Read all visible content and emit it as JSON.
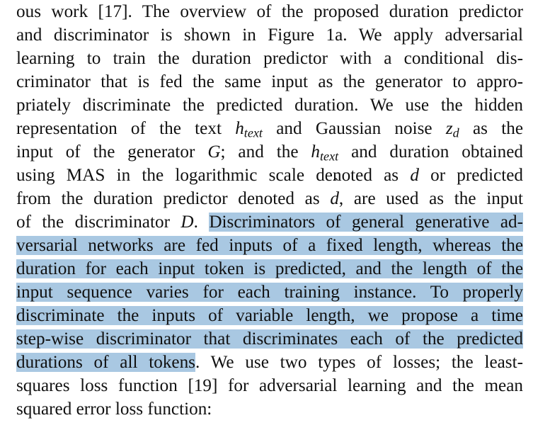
{
  "lines": [
    {
      "segments": [
        {
          "t": "ous work [17]. The overview of the proposed duration predictor"
        }
      ]
    },
    {
      "segments": [
        {
          "t": "and discriminator is shown in Figure 1a. We apply adversarial"
        }
      ]
    },
    {
      "segments": [
        {
          "t": "learning to train the duration predictor with a conditional dis-"
        }
      ]
    },
    {
      "segments": [
        {
          "t": "criminator that is fed the same input as the generator to appro-"
        }
      ]
    },
    {
      "segments": [
        {
          "t": "priately discriminate the predicted duration. We use the hidden"
        }
      ]
    },
    {
      "segments": [
        {
          "t": "representation of the text "
        },
        {
          "t": "h",
          "math": true
        },
        {
          "t": "text",
          "sub": true
        },
        {
          "t": " and Gaussian noise "
        },
        {
          "t": "z",
          "math": true
        },
        {
          "t": "d",
          "sub": true
        },
        {
          "t": " as the"
        }
      ]
    },
    {
      "segments": [
        {
          "t": "input of the generator "
        },
        {
          "t": "G",
          "math": true
        },
        {
          "t": "; and the "
        },
        {
          "t": "h",
          "math": true
        },
        {
          "t": "text",
          "sub": true
        },
        {
          "t": " and duration obtained"
        }
      ]
    },
    {
      "segments": [
        {
          "t": "using MAS in the logarithmic scale denoted as "
        },
        {
          "t": "d",
          "math": true
        },
        {
          "t": " or predicted"
        }
      ]
    },
    {
      "segments": [
        {
          "t": "from the duration predictor denoted as "
        },
        {
          "t": "d",
          "hat": true
        },
        {
          "t": ", are used as the input"
        }
      ]
    },
    {
      "segments": [
        {
          "t": "of the discriminator "
        },
        {
          "t": "D",
          "math": true
        },
        {
          "t": ". "
        },
        {
          "t": "Discriminators of general generative ad-",
          "hl": true
        }
      ]
    },
    {
      "segments": [
        {
          "t": "versarial networks are fed inputs of a fixed length, whereas the",
          "hl": true
        }
      ]
    },
    {
      "segments": [
        {
          "t": "duration for each input token is predicted, and the length of the",
          "hl": true
        }
      ]
    },
    {
      "segments": [
        {
          "t": "input sequence varies for each training instance.  To properly",
          "hl": true
        }
      ]
    },
    {
      "segments": [
        {
          "t": "discriminate the inputs of variable length, we propose a time",
          "hl": true
        }
      ]
    },
    {
      "segments": [
        {
          "t": "step-wise discriminator that discriminates each of the predicted",
          "hl": true
        }
      ]
    },
    {
      "segments": [
        {
          "t": "durations of all tokens",
          "hl": true
        },
        {
          "t": ". We use two types of losses; the least-"
        }
      ]
    },
    {
      "segments": [
        {
          "t": "squares loss function [19] for adversarial learning and the mean"
        }
      ]
    },
    {
      "segments": [
        {
          "t": "squared error loss function:"
        }
      ],
      "last": true
    }
  ],
  "accent_char": "ˆ"
}
